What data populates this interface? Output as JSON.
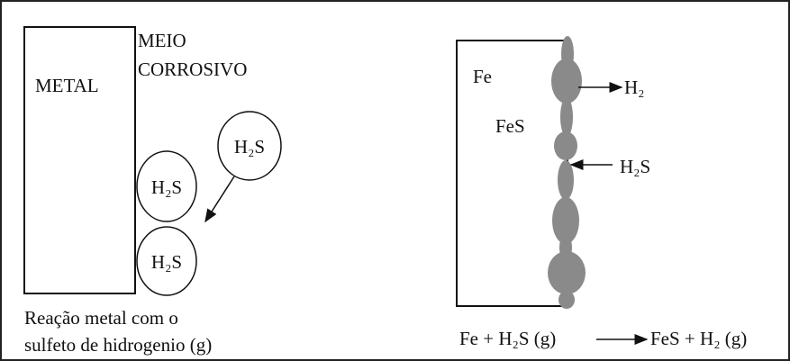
{
  "left_panel": {
    "metal_label": "METAL",
    "medium_label_line1": "MEIO",
    "medium_label_line2": "CORROSIVO",
    "molecules": [
      "H₂S",
      "H₂S",
      "H₂S"
    ],
    "caption_line1": "Reação metal com o",
    "caption_line2": "sulfeto de hidrogenio (g)"
  },
  "right_panel": {
    "fe_label": "Fe",
    "fes_label": "FeS",
    "h2_label": "H₂",
    "h2s_label": "H₂S",
    "equation_left": "Fe + H₂S (g)",
    "equation_right": "FeS + H₂ (g)"
  }
}
